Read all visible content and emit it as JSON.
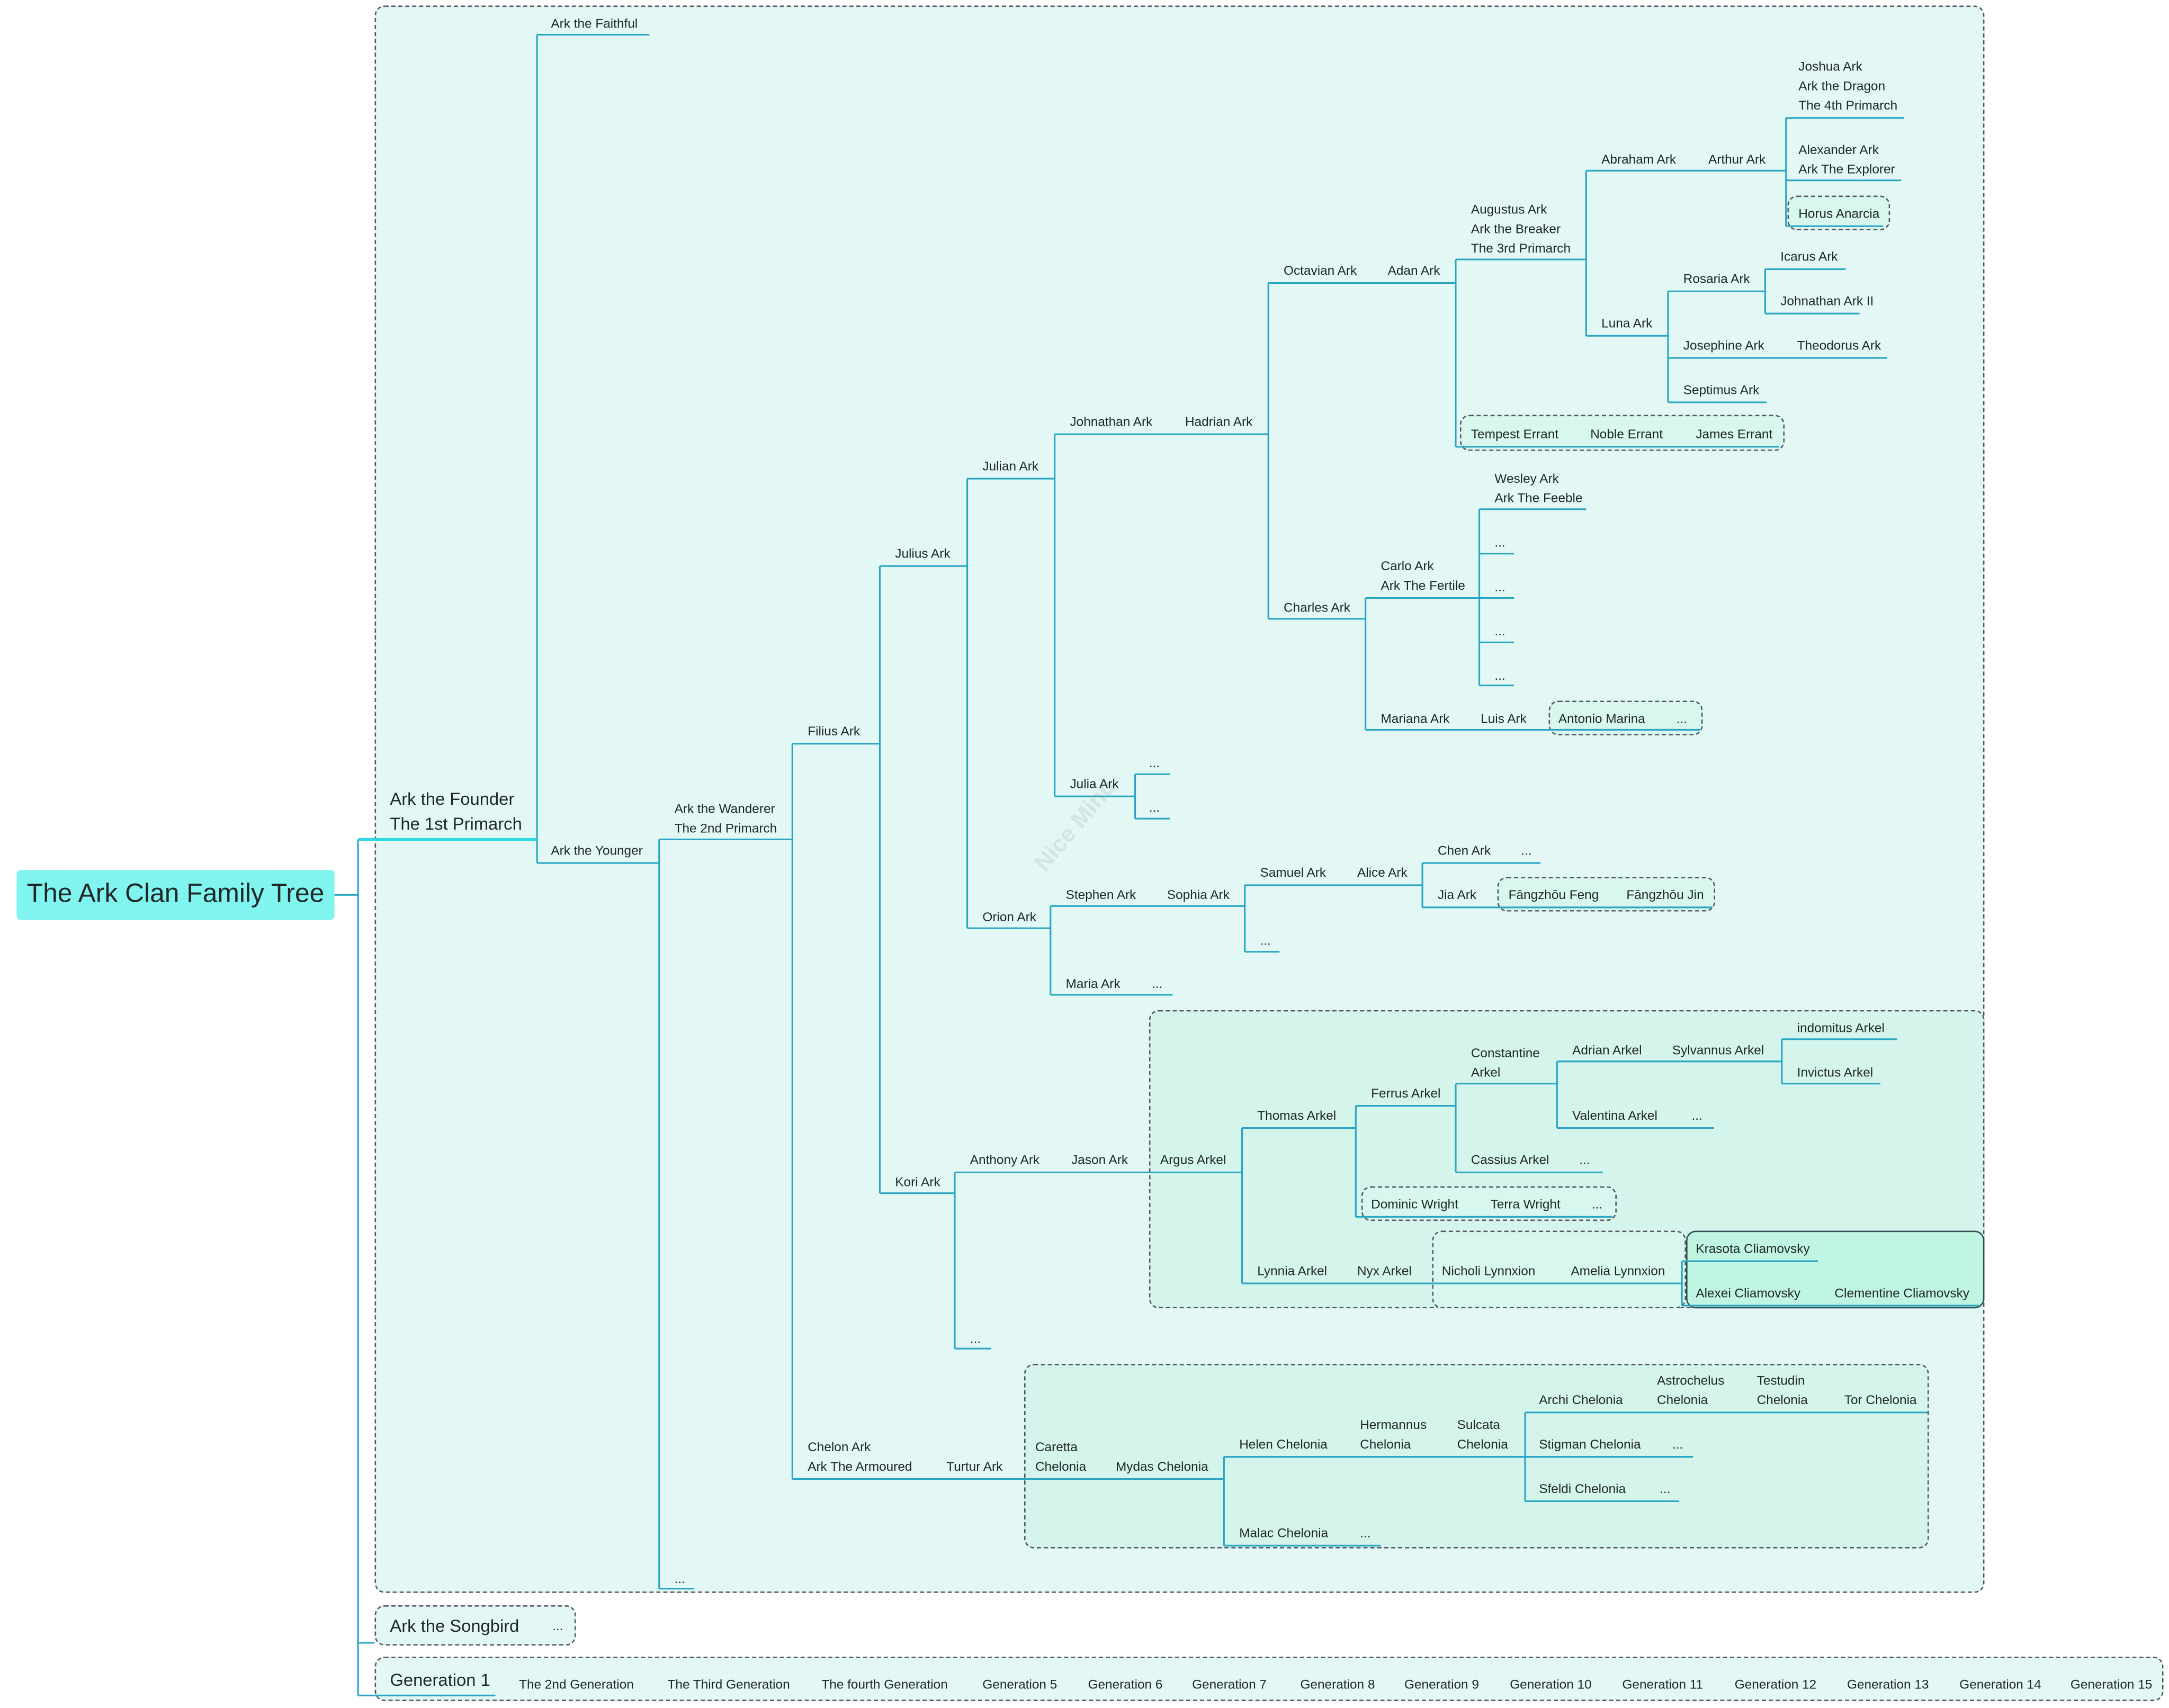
{
  "title": "The Ark Clan Family Tree",
  "watermark": "Nice Mind",
  "colors": {
    "line": "#2aa6c4",
    "root": "#80f4ee",
    "canvas": "#e3f8f4",
    "subgroup": "#d5f5ec",
    "highlight": "#c0f5e2"
  },
  "nodes": {
    "founder": "Ark the Founder\nThe 1st Primarch",
    "faithful": "Ark the Faithful",
    "younger": "Ark the Younger",
    "wanderer": "Ark the Wanderer\nThe 2nd Primarch",
    "younger_more": "...",
    "filius": "Filius Ark",
    "chelon": "Chelon Ark\nArk The Armoured",
    "turtur": "Turtur Ark",
    "julius": "Julius Ark",
    "kori": "Kori Ark",
    "julian": "Julian Ark",
    "orion": "Orion Ark",
    "johnathan": "Johnathan Ark",
    "hadrian": "Hadrian Ark",
    "julia": "Julia Ark",
    "julia_more1": "...",
    "julia_more2": "...",
    "octavian": "Octavian Ark",
    "adan": "Adan Ark",
    "charles": "Charles Ark",
    "augustus": "Augustus Ark\nArk the Breaker\nThe 3rd Primarch",
    "tempest": "Tempest Errant",
    "noble": "Noble Errant",
    "james": "James Errant",
    "abraham": "Abraham Ark",
    "arthur": "Arthur Ark",
    "luna": "Luna Ark",
    "joshua": "Joshua Ark\nArk the Dragon\nThe 4th Primarch",
    "alexander": "Alexander Ark\nArk The Explorer",
    "horus": "Horus Anarcia",
    "rosaria": "Rosaria Ark",
    "josephine": "Josephine Ark",
    "theodorus": "Theodorus Ark",
    "septimus": "Septimus Ark",
    "icarus": "Icarus Ark",
    "johnathan2": "Johnathan Ark II",
    "carlo": "Carlo Ark\nArk The Fertile",
    "mariana": "Mariana Ark",
    "luis": "Luis Ark",
    "antonio": "Antonio Marina",
    "antonio_more": "...",
    "wesley": "Wesley Ark\nArk The Feeble",
    "carlo_more1": "...",
    "carlo_more2": "...",
    "carlo_more3": "...",
    "carlo_more4": "...",
    "stephen": "Stephen Ark",
    "sophia": "Sophia Ark",
    "maria": "Maria Ark",
    "maria_more": "...",
    "samuel": "Samuel Ark",
    "alice": "Alice Ark",
    "sophia_more": "...",
    "chen": "Chen Ark",
    "chen_more": "...",
    "jia": "Jia Ark",
    "feng": "Fāngzhōu Feng",
    "jin": "Fāngzhōu Jin",
    "anthony": "Anthony Ark",
    "jason": "Jason Ark",
    "kori_more": "...",
    "argus": "Argus Arkel",
    "thomas": "Thomas Arkel",
    "lynnia": "Lynnia Arkel",
    "nyx": "Nyx Arkel",
    "nicholi": "Nicholi Lynnxion",
    "amelia": "Amelia Lynnxion",
    "krasota": "Krasota Cliamovsky",
    "alexei": "Alexei Cliamovsky",
    "clementine": "Clementine Cliamovsky",
    "ferrus": "Ferrus Arkel",
    "dominic": "Dominic Wright",
    "terra": "Terra Wright",
    "wright_more": "...",
    "constantine": "Constantine\nArkel",
    "cassius": "Cassius Arkel",
    "cassius_more": "...",
    "adrian": "Adrian Arkel",
    "sylvannus": "Sylvannus Arkel",
    "valentina": "Valentina Arkel",
    "valentina_more": "...",
    "indomitus": "indomitus Arkel",
    "invictus": "Invictus Arkel",
    "caretta": "Caretta\nChelonia",
    "mydas": "Mydas Chelonia",
    "helen": "Helen Chelonia",
    "hermannus": "Hermannus\nChelonia",
    "sulcata": "Sulcata\nChelonia",
    "malac": "Malac Chelonia",
    "malac_more": "...",
    "archi": "Archi Chelonia",
    "astrochelus": "Astrochelus\nChelonia",
    "testudin": "Testudin\nChelonia",
    "tor": "Tor Chelonia",
    "stigman": "Stigman Chelonia",
    "stigman_more": "...",
    "sfeldi": "Sfeldi Chelonia",
    "sfeldi_more": "...",
    "songbird": "Ark the Songbird",
    "songbird_more": "..."
  },
  "generations": [
    "Generation 1",
    "The 2nd Generation",
    "The Third Generation",
    "The fourth Generation",
    "Generation 5",
    "Generation 6",
    "Generation 7",
    "Generation 8",
    "Generation 9",
    "Generation 10",
    "Generation 11",
    "Generation 12",
    "Generation 13",
    "Generation 14",
    "Generation 15"
  ]
}
